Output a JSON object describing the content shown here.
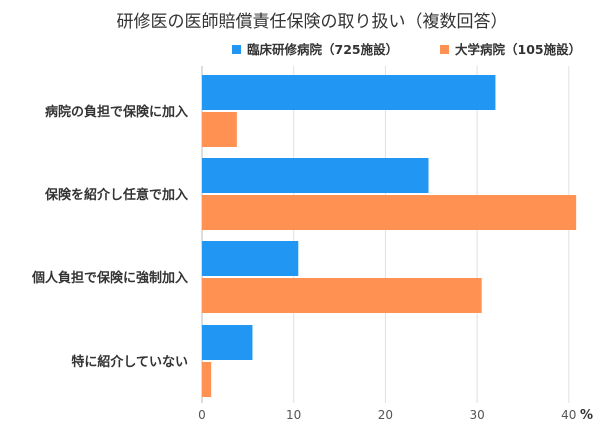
{
  "chart_data": {
    "type": "bar",
    "orientation": "horizontal",
    "title": "研修医の医師賠償責任保険の取り扱い（複数回答）",
    "categories": [
      "病院の負担で保険に加入",
      "保険を紹介し任意で加入",
      "個人負担で保険に強制加入",
      "特に紹介していない"
    ],
    "series": [
      {
        "name": "臨床研修病院（725施設）",
        "color": "#2196F3",
        "values": [
          32,
          24.7,
          10.5,
          5.5
        ]
      },
      {
        "name": "大学病院（105施設）",
        "color": "#FF9152",
        "values": [
          3.8,
          40.8,
          30.5,
          1
        ]
      }
    ],
    "xticks": [
      0,
      10,
      20,
      30,
      40
    ],
    "xlim": [
      0,
      42
    ],
    "unit": "%",
    "grid": true,
    "legend_position": "top-right"
  }
}
